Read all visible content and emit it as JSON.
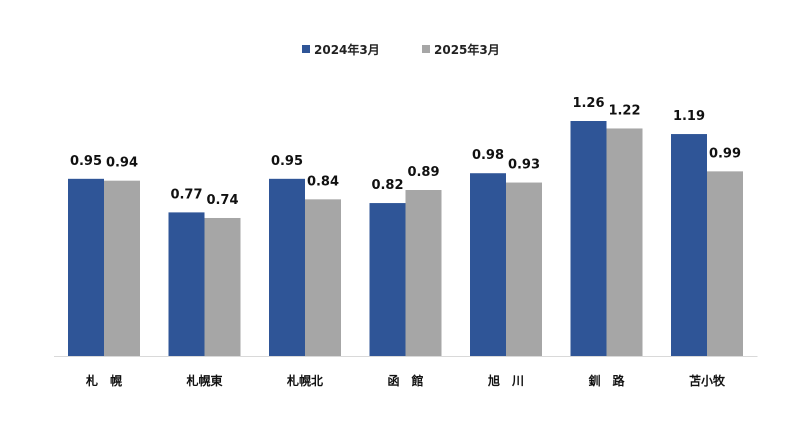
{
  "chart_data": {
    "type": "bar",
    "categories": [
      "札　幌",
      "札幌東",
      "札幌北",
      "函　館",
      "旭　川",
      "釧　路",
      "苫小牧"
    ],
    "series": [
      {
        "name": "2024年3月",
        "color": "#2f5597",
        "values": [
          0.95,
          0.77,
          0.95,
          0.82,
          0.98,
          1.26,
          1.19
        ]
      },
      {
        "name": "2025年3月",
        "color": "#a6a6a6",
        "values": [
          0.94,
          0.74,
          0.84,
          0.89,
          0.93,
          1.22,
          0.99
        ]
      }
    ],
    "title": "",
    "xlabel": "",
    "ylabel": "",
    "ylim": [
      0,
      1.26
    ],
    "grid": false,
    "legend_position": "top-center",
    "axis_color": "#d9d9d9"
  }
}
